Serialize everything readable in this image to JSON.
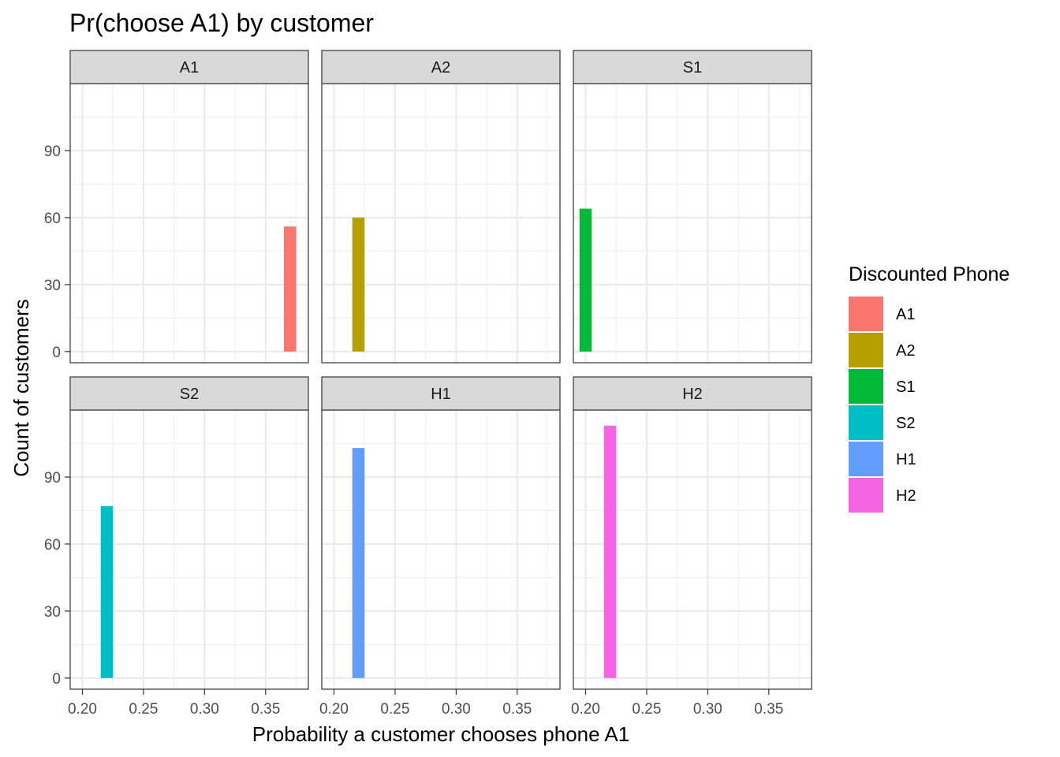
{
  "chart_data": {
    "type": "bar",
    "title": "Pr(choose A1) by customer",
    "xlabel": "Probability a customer chooses phone A1",
    "ylabel": "Count of customers",
    "xlim": [
      0.19,
      0.385
    ],
    "ylim": [
      -5,
      120
    ],
    "x_ticks": [
      0.2,
      0.25,
      0.3,
      0.35
    ],
    "x_tick_labels": [
      "0.20",
      "0.25",
      "0.30",
      "0.35"
    ],
    "y_ticks": [
      0,
      30,
      60,
      90
    ],
    "y_tick_labels": [
      "0",
      "30",
      "60",
      "90"
    ],
    "bin_width": 0.01,
    "grid": true,
    "legend": {
      "title": "Discounted Phone",
      "position": "right",
      "entries": [
        {
          "label": "A1",
          "color": "#F8766D"
        },
        {
          "label": "A2",
          "color": "#B79F00"
        },
        {
          "label": "S1",
          "color": "#00BA38"
        },
        {
          "label": "S2",
          "color": "#00BFC4"
        },
        {
          "label": "H1",
          "color": "#619CFF"
        },
        {
          "label": "H2",
          "color": "#F564E3"
        }
      ]
    },
    "facets": [
      {
        "label": "A1",
        "color": "#F8766D",
        "bars": [
          {
            "x": 0.37,
            "count": 56
          }
        ]
      },
      {
        "label": "A2",
        "color": "#B79F00",
        "bars": [
          {
            "x": 0.22,
            "count": 60
          }
        ]
      },
      {
        "label": "S1",
        "color": "#00BA38",
        "bars": [
          {
            "x": 0.2,
            "count": 64
          }
        ]
      },
      {
        "label": "S2",
        "color": "#00BFC4",
        "bars": [
          {
            "x": 0.22,
            "count": 77
          }
        ]
      },
      {
        "label": "H1",
        "color": "#619CFF",
        "bars": [
          {
            "x": 0.22,
            "count": 103
          }
        ]
      },
      {
        "label": "H2",
        "color": "#F564E3",
        "bars": [
          {
            "x": 0.22,
            "count": 113
          }
        ]
      }
    ]
  }
}
